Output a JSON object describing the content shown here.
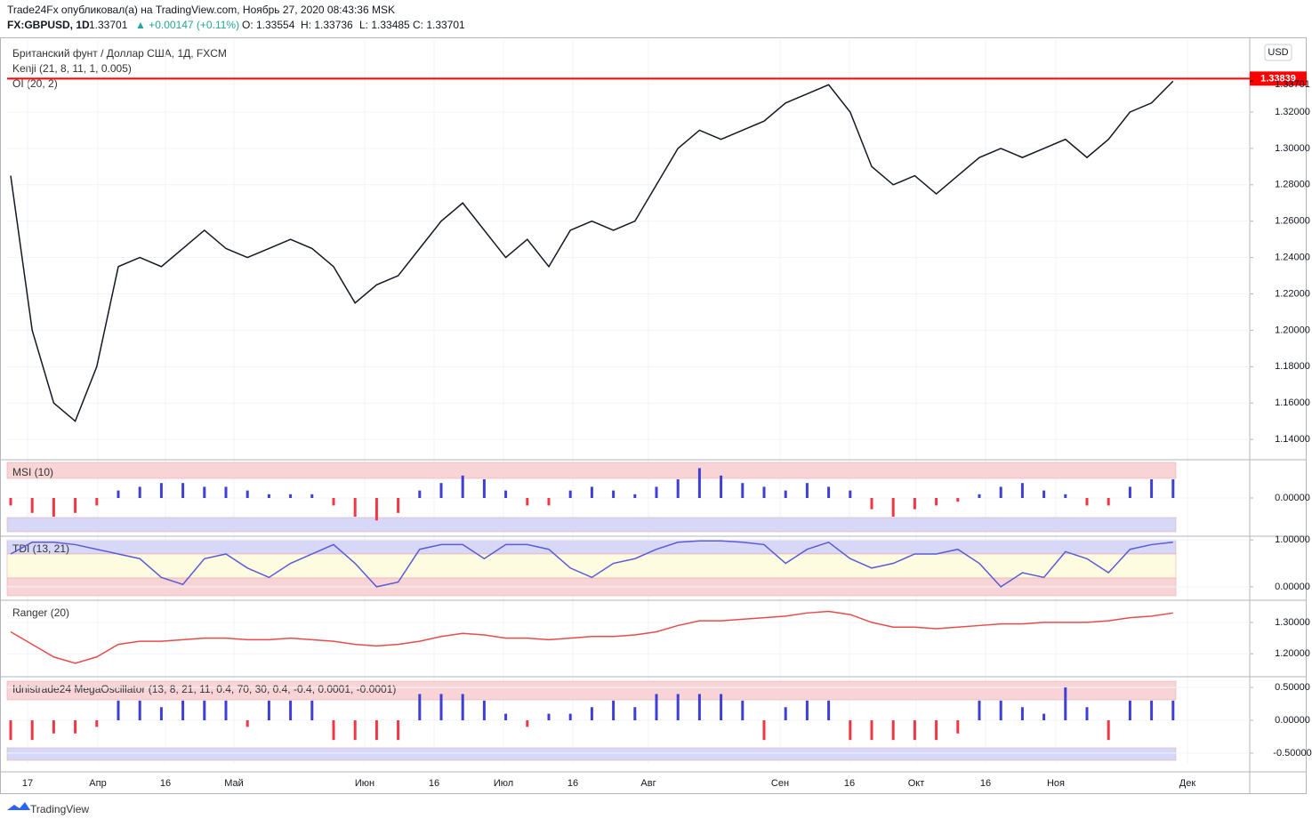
{
  "header": {
    "published": "Trade24Fx опубликовал(а) на TradingView.com, Ноябрь 27, 2020 08:43:36 MSK",
    "symbol": "FX:GBPUSD, 1D",
    "last": "1.33701",
    "change": "▲ +0.00147 (+0.11%)",
    "open": "O: 1.33554",
    "high": "H: 1.33736",
    "low": "L: 1.33485",
    "close": "C: 1.33701"
  },
  "legend": {
    "instrument": "Британский фунт / Доллар США, 1Д, FXCM",
    "indicator1": "Kenji (21, 8, 11, 1, 0.005)",
    "indicator2": "OI (20, 2)",
    "currency": "USD"
  },
  "time_axis": {
    "labels": [
      "17",
      "Апр",
      "16",
      "Май",
      "Июн",
      "16",
      "Июл",
      "16",
      "Авг",
      "Сен",
      "16",
      "Окт",
      "16",
      "Ноя",
      "Дек"
    ]
  },
  "footer": {
    "brand": "TradingView"
  },
  "chart_data": [
    {
      "type": "line",
      "name": "price",
      "color": "#131722",
      "values": [
        1.285,
        1.2,
        1.16,
        1.15,
        1.18,
        1.235,
        1.24,
        1.235,
        1.245,
        1.255,
        1.245,
        1.24,
        1.245,
        1.25,
        1.245,
        1.235,
        1.215,
        1.225,
        1.23,
        1.245,
        1.26,
        1.27,
        1.255,
        1.24,
        1.25,
        1.235,
        1.255,
        1.26,
        1.255,
        1.26,
        1.28,
        1.3,
        1.31,
        1.305,
        1.31,
        1.315,
        1.325,
        1.33,
        1.335,
        1.32,
        1.29,
        1.28,
        1.285,
        1.275,
        1.285,
        1.295,
        1.3,
        1.295,
        1.3,
        1.305,
        1.295,
        1.305,
        1.32,
        1.325,
        1.337
      ],
      "ylim": [
        1.1298,
        1.3596
      ],
      "yticks": [
        {
          "value": 1.14,
          "label": "1.14000"
        },
        {
          "value": 1.16,
          "label": "1.16000"
        },
        {
          "value": 1.18,
          "label": "1.18000"
        },
        {
          "value": 1.2,
          "label": "1.20000"
        },
        {
          "value": 1.22,
          "label": "1.22000"
        },
        {
          "value": 1.24,
          "label": "1.24000"
        },
        {
          "value": 1.26,
          "label": "1.26000"
        },
        {
          "value": 1.28,
          "label": "1.28000"
        },
        {
          "value": 1.3,
          "label": "1.30000"
        },
        {
          "value": 1.32,
          "label": "1.32000"
        }
      ],
      "hline": {
        "value": 1.33839,
        "color": "#ff0000"
      },
      "current": 1.33701,
      "grid": true
    },
    {
      "type": "bar",
      "title": "MSI (10)",
      "color": "#3f3fd8",
      "negative_color": "#f23645",
      "values": [
        -0.2,
        -0.4,
        -0.5,
        -0.4,
        -0.2,
        0.2,
        0.3,
        0.4,
        0.4,
        0.3,
        0.3,
        0.2,
        0.1,
        0.1,
        0.1,
        -0.2,
        -0.5,
        -0.6,
        -0.4,
        0.2,
        0.4,
        0.6,
        0.5,
        0.2,
        -0.2,
        -0.2,
        0.2,
        0.3,
        0.2,
        0.1,
        0.3,
        0.5,
        0.8,
        0.6,
        0.4,
        0.3,
        0.2,
        0.4,
        0.3,
        0.2,
        -0.3,
        -0.5,
        -0.3,
        -0.2,
        -0.1,
        0.1,
        0.3,
        0.4,
        0.2,
        0.1,
        -0.2,
        -0.2,
        0.3,
        0.5,
        0.5
      ],
      "ylim": [
        -1,
        1
      ],
      "yticks": [
        {
          "value": 0,
          "label": "0.00000"
        }
      ]
    },
    {
      "type": "line",
      "title": "TDI (13, 21)",
      "color": "#5b5bd6",
      "values": [
        0.7,
        0.95,
        0.95,
        0.9,
        0.8,
        0.7,
        0.6,
        0.2,
        0.05,
        0.6,
        0.7,
        0.4,
        0.2,
        0.5,
        0.7,
        0.9,
        0.5,
        0.0,
        0.1,
        0.8,
        0.9,
        0.9,
        0.6,
        0.9,
        0.9,
        0.8,
        0.4,
        0.2,
        0.5,
        0.6,
        0.8,
        0.95,
        0.98,
        0.98,
        0.95,
        0.9,
        0.5,
        0.8,
        0.95,
        0.6,
        0.4,
        0.5,
        0.7,
        0.7,
        0.8,
        0.5,
        0.0,
        0.3,
        0.2,
        0.75,
        0.6,
        0.3,
        0.8,
        0.9,
        0.95
      ],
      "ylim": [
        -0.23,
        1.06
      ],
      "yticks": [
        {
          "value": 0,
          "label": "0.00000"
        },
        {
          "value": 1,
          "label": "1.00000"
        }
      ]
    },
    {
      "type": "line",
      "title": "Ranger (20)",
      "color": "#e94b4b",
      "values": [
        1.27,
        1.23,
        1.19,
        1.17,
        1.19,
        1.23,
        1.24,
        1.24,
        1.245,
        1.25,
        1.25,
        1.245,
        1.245,
        1.25,
        1.245,
        1.24,
        1.23,
        1.225,
        1.23,
        1.24,
        1.255,
        1.265,
        1.26,
        1.25,
        1.25,
        1.245,
        1.25,
        1.255,
        1.255,
        1.26,
        1.27,
        1.29,
        1.305,
        1.305,
        1.31,
        1.315,
        1.32,
        1.33,
        1.335,
        1.325,
        1.3,
        1.285,
        1.285,
        1.28,
        1.285,
        1.29,
        1.295,
        1.295,
        1.3,
        1.3,
        1.3,
        1.305,
        1.315,
        1.32,
        1.33
      ],
      "ylim": [
        1.1355,
        1.3677
      ],
      "yticks": [
        {
          "value": 1.2,
          "label": "1.20000"
        },
        {
          "value": 1.3,
          "label": "1.30000"
        }
      ]
    },
    {
      "type": "bar",
      "title": "Idnistrade24 MegaOscillator (13, 8, 21, 11, 0.4, 70, 30, 0.4, -0.4, 0.0001, -0.0001)",
      "color": "#3f3fd8",
      "negative_color": "#f23645",
      "values": [
        -0.3,
        -0.3,
        -0.2,
        -0.2,
        -0.1,
        0.3,
        0.3,
        0.2,
        0.3,
        0.3,
        0.3,
        -0.1,
        0.3,
        0.3,
        0.3,
        -0.3,
        -0.3,
        -0.3,
        -0.3,
        0.4,
        0.4,
        0.4,
        0.3,
        0.1,
        -0.1,
        0.1,
        0.1,
        0.2,
        0.3,
        0.2,
        0.4,
        0.4,
        0.4,
        0.4,
        0.3,
        -0.3,
        0.2,
        0.3,
        0.3,
        -0.3,
        -0.3,
        -0.3,
        -0.3,
        -0.3,
        -0.2,
        0.3,
        0.3,
        0.2,
        0.1,
        0.5,
        0.2,
        -0.3,
        0.3,
        0.3,
        0.3
      ],
      "ylim": [
        -0.65,
        0.65
      ],
      "yticks": [
        {
          "value": -0.5,
          "label": "-0.50000"
        },
        {
          "value": 0,
          "label": "0.00000"
        },
        {
          "value": 0.5,
          "label": "0.50000"
        }
      ]
    }
  ]
}
